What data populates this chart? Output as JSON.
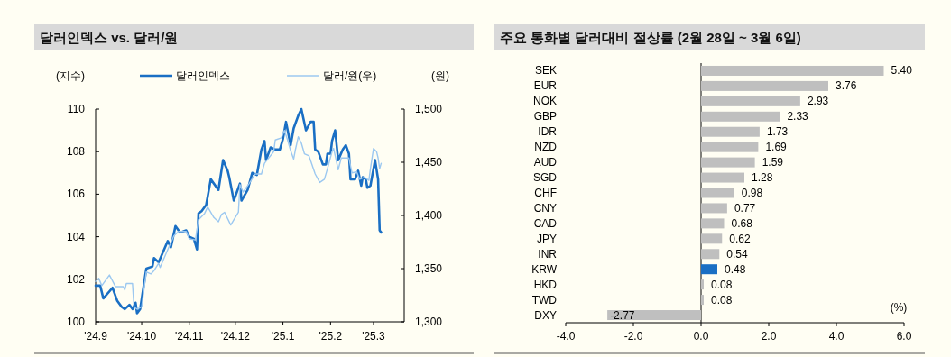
{
  "chart_data": [
    {
      "type": "line",
      "title": "달러인덱스 vs. 달러/원",
      "ylabel": "(지수)",
      "y2label": "(원)",
      "legend": "top",
      "xlim": [
        "2024-09-01",
        "2025-03-21"
      ],
      "xticks": [
        {
          "value": "2024-09-01",
          "label": "'24.9"
        },
        {
          "value": "2024-10-01",
          "label": "'24.10"
        },
        {
          "value": "2024-11-01",
          "label": "'24.11"
        },
        {
          "value": "2024-12-01",
          "label": "'24.12"
        },
        {
          "value": "2025-01-01",
          "label": "'25.1"
        },
        {
          "value": "2025-02-01",
          "label": "'25.2"
        },
        {
          "value": "2025-03-01",
          "label": "'25.3"
        }
      ],
      "ylim": [
        100,
        110
      ],
      "yticks": [
        100,
        102,
        104,
        106,
        108,
        110
      ],
      "y2lim": [
        1300,
        1500
      ],
      "y2ticks": [
        {
          "value": 1300,
          "label": "1,300"
        },
        {
          "value": 1350,
          "label": "1,350"
        },
        {
          "value": 1400,
          "label": "1,400"
        },
        {
          "value": 1450,
          "label": "1,450"
        },
        {
          "value": 1500,
          "label": "1,500"
        }
      ],
      "series": [
        {
          "name": "달러인덱스",
          "color": "#1a6fc4",
          "x": [
            "2024-09-01",
            "2024-09-04",
            "2024-09-06",
            "2024-09-12",
            "2024-09-15",
            "2024-09-18",
            "2024-09-20",
            "2024-09-23",
            "2024-09-25",
            "2024-09-27",
            "2024-09-28",
            "2024-09-30",
            "2024-10-04",
            "2024-10-08",
            "2024-10-09",
            "2024-10-12",
            "2024-10-18",
            "2024-10-20",
            "2024-10-23",
            "2024-10-26",
            "2024-10-30",
            "2024-11-01",
            "2024-11-04",
            "2024-11-06",
            "2024-11-07",
            "2024-11-09",
            "2024-11-12",
            "2024-11-15",
            "2024-11-20",
            "2024-11-23",
            "2024-11-26",
            "2024-11-27",
            "2024-11-30",
            "2024-12-04",
            "2024-12-05",
            "2024-12-09",
            "2024-12-12",
            "2024-12-15",
            "2024-12-18",
            "2024-12-20",
            "2024-12-21",
            "2024-12-24",
            "2024-12-27",
            "2024-12-30",
            "2025-01-01",
            "2025-01-03",
            "2025-01-06",
            "2025-01-08",
            "2025-01-11",
            "2025-01-13",
            "2025-01-16",
            "2025-01-19",
            "2025-01-21",
            "2025-01-22",
            "2025-01-24",
            "2025-01-27",
            "2025-01-29",
            "2025-01-30",
            "2025-02-01",
            "2025-02-02",
            "2025-02-04",
            "2025-02-06",
            "2025-02-09",
            "2025-02-11",
            "2025-02-13",
            "2025-02-14",
            "2025-02-17",
            "2025-02-19",
            "2025-02-21",
            "2025-02-22",
            "2025-02-24",
            "2025-02-25",
            "2025-02-27",
            "2025-03-02",
            "2025-03-04",
            "2025-03-05",
            "2025-03-06"
          ],
          "values": [
            101.7,
            101.7,
            101.1,
            101.6,
            101.0,
            100.7,
            100.6,
            100.8,
            100.6,
            100.9,
            100.4,
            100.6,
            102.5,
            102.6,
            103.0,
            102.8,
            103.8,
            103.5,
            104.5,
            104.2,
            104.3,
            104.0,
            103.9,
            103.4,
            105.1,
            105.2,
            105.5,
            106.7,
            106.2,
            107.6,
            107.1,
            106.8,
            105.7,
            106.5,
            105.7,
            106.2,
            107.0,
            106.9,
            108.1,
            108.5,
            107.6,
            108.2,
            108.1,
            108.1,
            108.6,
            109.4,
            108.3,
            109.1,
            109.7,
            110.0,
            109.0,
            109.4,
            109.4,
            108.1,
            108.0,
            107.4,
            107.4,
            107.9,
            107.9,
            108.5,
            109.0,
            107.6,
            108.1,
            108.3,
            107.9,
            106.7,
            106.7,
            107.1,
            106.4,
            106.8,
            106.7,
            106.3,
            106.4,
            107.6,
            106.7,
            104.3,
            104.2
          ]
        },
        {
          "name": "달러/원(우)",
          "color": "#9cc8f0",
          "axis": "y2",
          "x": [
            "2024-09-01",
            "2024-09-03",
            "2024-09-05",
            "2024-09-10",
            "2024-09-14",
            "2024-09-19",
            "2024-09-20",
            "2024-09-21",
            "2024-09-25",
            "2024-09-26",
            "2024-09-28",
            "2024-10-01",
            "2024-10-04",
            "2024-10-07",
            "2024-10-09",
            "2024-10-12",
            "2024-10-13",
            "2024-10-18",
            "2024-10-22",
            "2024-10-25",
            "2024-10-30",
            "2024-11-01",
            "2024-11-05",
            "2024-11-07",
            "2024-11-11",
            "2024-11-13",
            "2024-11-17",
            "2024-11-20",
            "2024-11-22",
            "2024-11-24",
            "2024-11-28",
            "2024-12-03",
            "2024-12-04",
            "2024-12-06",
            "2024-12-10",
            "2024-12-14",
            "2024-12-18",
            "2024-12-20",
            "2024-12-26",
            "2024-12-27",
            "2024-12-31",
            "2025-01-02",
            "2025-01-04",
            "2025-01-06",
            "2025-01-08",
            "2025-01-09",
            "2025-01-11",
            "2025-01-13",
            "2025-01-15",
            "2025-01-18",
            "2025-01-22",
            "2025-01-25",
            "2025-01-28",
            "2025-01-30",
            "2025-02-02",
            "2025-02-03",
            "2025-02-06",
            "2025-02-08",
            "2025-02-13",
            "2025-02-15",
            "2025-02-18",
            "2025-02-20",
            "2025-02-23",
            "2025-02-26",
            "2025-02-27",
            "2025-03-01",
            "2025-03-03",
            "2025-03-04",
            "2025-03-05",
            "2025-03-06"
          ],
          "values": [
            1338,
            1341,
            1334,
            1344,
            1333,
            1333,
            1330,
            1336,
            1336,
            1314,
            1312,
            1314,
            1347,
            1345,
            1348,
            1355,
            1351,
            1368,
            1381,
            1385,
            1385,
            1378,
            1377,
            1396,
            1402,
            1408,
            1398,
            1394,
            1401,
            1403,
            1391,
            1403,
            1429,
            1422,
            1430,
            1439,
            1439,
            1449,
            1460,
            1471,
            1473,
            1480,
            1471,
            1461,
            1453,
            1461,
            1474,
            1468,
            1458,
            1456,
            1439,
            1431,
            1434,
            1444,
            1460,
            1463,
            1443,
            1454,
            1454,
            1440,
            1441,
            1434,
            1436,
            1433,
            1444,
            1463,
            1460,
            1454,
            1444,
            1449
          ]
        }
      ]
    },
    {
      "type": "bar",
      "orientation": "horizontal",
      "title": "주요 통화별 달러대비 절상률 (2월 28일 ~ 3월 6일)",
      "categories": [
        "SEK",
        "EUR",
        "NOK",
        "GBP",
        "IDR",
        "NZD",
        "AUD",
        "SGD",
        "CHF",
        "CNY",
        "CAD",
        "JPY",
        "INR",
        "KRW",
        "HKD",
        "TWD",
        "DXY"
      ],
      "values": [
        5.4,
        3.76,
        2.93,
        2.33,
        1.73,
        1.69,
        1.59,
        1.28,
        0.98,
        0.77,
        0.68,
        0.62,
        0.54,
        0.48,
        0.08,
        0.08,
        -2.77
      ],
      "value_labels": [
        "5.40",
        "3.76",
        "2.93",
        "2.33",
        "1.73",
        "1.69",
        "1.59",
        "1.28",
        "0.98",
        "0.77",
        "0.68",
        "0.62",
        "0.54",
        "0.48",
        "0.08",
        "0.08",
        "-2.77"
      ],
      "colors": [
        "#bfbfbf",
        "#bfbfbf",
        "#bfbfbf",
        "#bfbfbf",
        "#bfbfbf",
        "#bfbfbf",
        "#bfbfbf",
        "#bfbfbf",
        "#bfbfbf",
        "#bfbfbf",
        "#bfbfbf",
        "#bfbfbf",
        "#bfbfbf",
        "#1a6fc4",
        "#bfbfbf",
        "#bfbfbf",
        "#bfbfbf"
      ],
      "xlim": [
        -4,
        6
      ],
      "xticks": [
        {
          "value": -4,
          "label": "-4.0"
        },
        {
          "value": -2,
          "label": "-2.0"
        },
        {
          "value": 0,
          "label": "0.0"
        },
        {
          "value": 2,
          "label": "2.0"
        },
        {
          "value": 4,
          "label": "4.0"
        },
        {
          "value": 6,
          "label": "6.0"
        }
      ],
      "annotations": [
        "(%)"
      ]
    }
  ]
}
